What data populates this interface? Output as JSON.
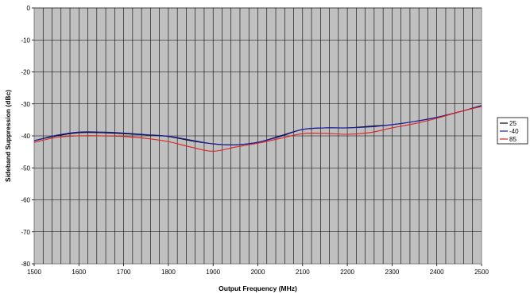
{
  "chart_data": {
    "type": "line",
    "title": "",
    "xlabel": "Output Frequency (MHz)",
    "ylabel": "Sideband Suppression (dBc)",
    "xlim": [
      1500,
      2500
    ],
    "ylim": [
      -80,
      0
    ],
    "xticks": [
      1500,
      1600,
      1700,
      1800,
      1900,
      2000,
      2100,
      2200,
      2300,
      2400,
      2500
    ],
    "yticks": [
      0,
      -10,
      -20,
      -30,
      -40,
      -50,
      -60,
      -70,
      -80
    ],
    "grid": true,
    "legend": "right",
    "series": [
      {
        "name": "25",
        "color": "#000000",
        "x": [
          1500,
          1550,
          1600,
          1650,
          1700,
          1750,
          1800,
          1850,
          1900,
          1950,
          2000,
          2050,
          2100,
          2150,
          2200,
          2250,
          2300,
          2350,
          2400,
          2450,
          2500
        ],
        "y": [
          -41.5,
          -40,
          -39,
          -39,
          -39.3,
          -39.7,
          -40.2,
          -41.5,
          -42.5,
          -42.8,
          -42,
          -40,
          -38,
          -37.5,
          -37.5,
          -37,
          -36.5,
          -35.5,
          -34.2,
          -32.5,
          -30.5
        ]
      },
      {
        "name": "-40",
        "color": "#1f1fa8",
        "x": [
          1500,
          1550,
          1600,
          1650,
          1700,
          1750,
          1800,
          1850,
          1900,
          1950,
          2000,
          2050,
          2100,
          2150,
          2200,
          2250,
          2300,
          2350,
          2400,
          2450,
          2500
        ],
        "y": [
          -41.5,
          -39.8,
          -38.8,
          -38.8,
          -39.1,
          -39.6,
          -40.1,
          -41.3,
          -42.5,
          -42.8,
          -42,
          -40.2,
          -38,
          -37.5,
          -37.5,
          -37.2,
          -36.5,
          -35.5,
          -34.2,
          -32.5,
          -30.5
        ]
      },
      {
        "name": "85",
        "color": "#e02020",
        "x": [
          1500,
          1550,
          1600,
          1650,
          1700,
          1750,
          1800,
          1850,
          1900,
          1950,
          2000,
          2050,
          2100,
          2150,
          2200,
          2250,
          2300,
          2350,
          2400,
          2450,
          2500
        ],
        "y": [
          -42,
          -40.5,
          -40,
          -40,
          -40.2,
          -40.8,
          -41.8,
          -43.5,
          -44.8,
          -43.5,
          -42.3,
          -40.8,
          -39.3,
          -39.2,
          -39.5,
          -39,
          -37.5,
          -36.2,
          -34.5,
          -32.5,
          -30.8
        ]
      }
    ]
  }
}
